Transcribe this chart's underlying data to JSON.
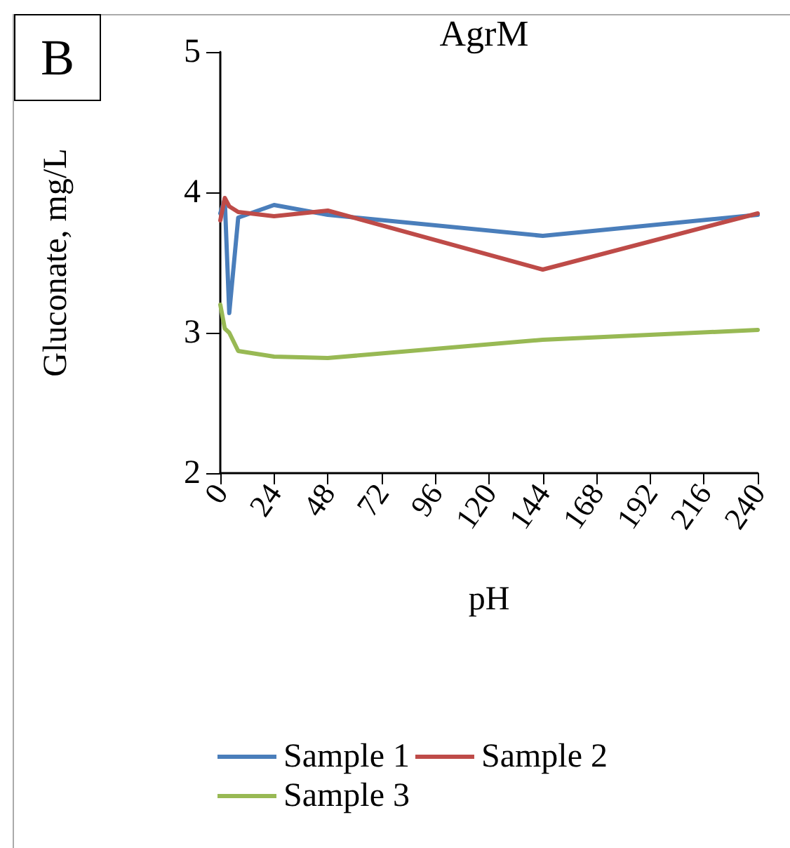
{
  "chart_data": {
    "type": "line",
    "title": "AgrM",
    "xlabel": "pH",
    "ylabel": "Gluconate, mg/L",
    "annotations": [
      "B"
    ],
    "x": [
      0,
      2,
      4,
      8,
      24,
      48,
      144,
      240
    ],
    "series": [
      {
        "name": "Sample 1",
        "color": "#4a7ebb",
        "values": [
          3.85,
          3.95,
          3.14,
          3.82,
          3.91,
          3.84,
          3.69,
          3.84
        ]
      },
      {
        "name": "Sample 2",
        "color": "#be4b48",
        "values": [
          3.8,
          3.96,
          3.9,
          3.86,
          3.83,
          3.87,
          3.45,
          3.85
        ]
      },
      {
        "name": "Sample 3",
        "color": "#98b954",
        "values": [
          3.2,
          3.03,
          3.0,
          2.87,
          2.83,
          2.82,
          2.95,
          3.02
        ]
      }
    ],
    "xlim": [
      0,
      240
    ],
    "xticks": [
      0,
      24,
      48,
      72,
      96,
      120,
      144,
      168,
      192,
      216,
      240
    ],
    "ylim": [
      2,
      5
    ],
    "yticks": [
      2,
      3,
      4,
      5
    ],
    "grid": false,
    "legend": "bottom",
    "marker": "none",
    "line_style": "solid"
  }
}
